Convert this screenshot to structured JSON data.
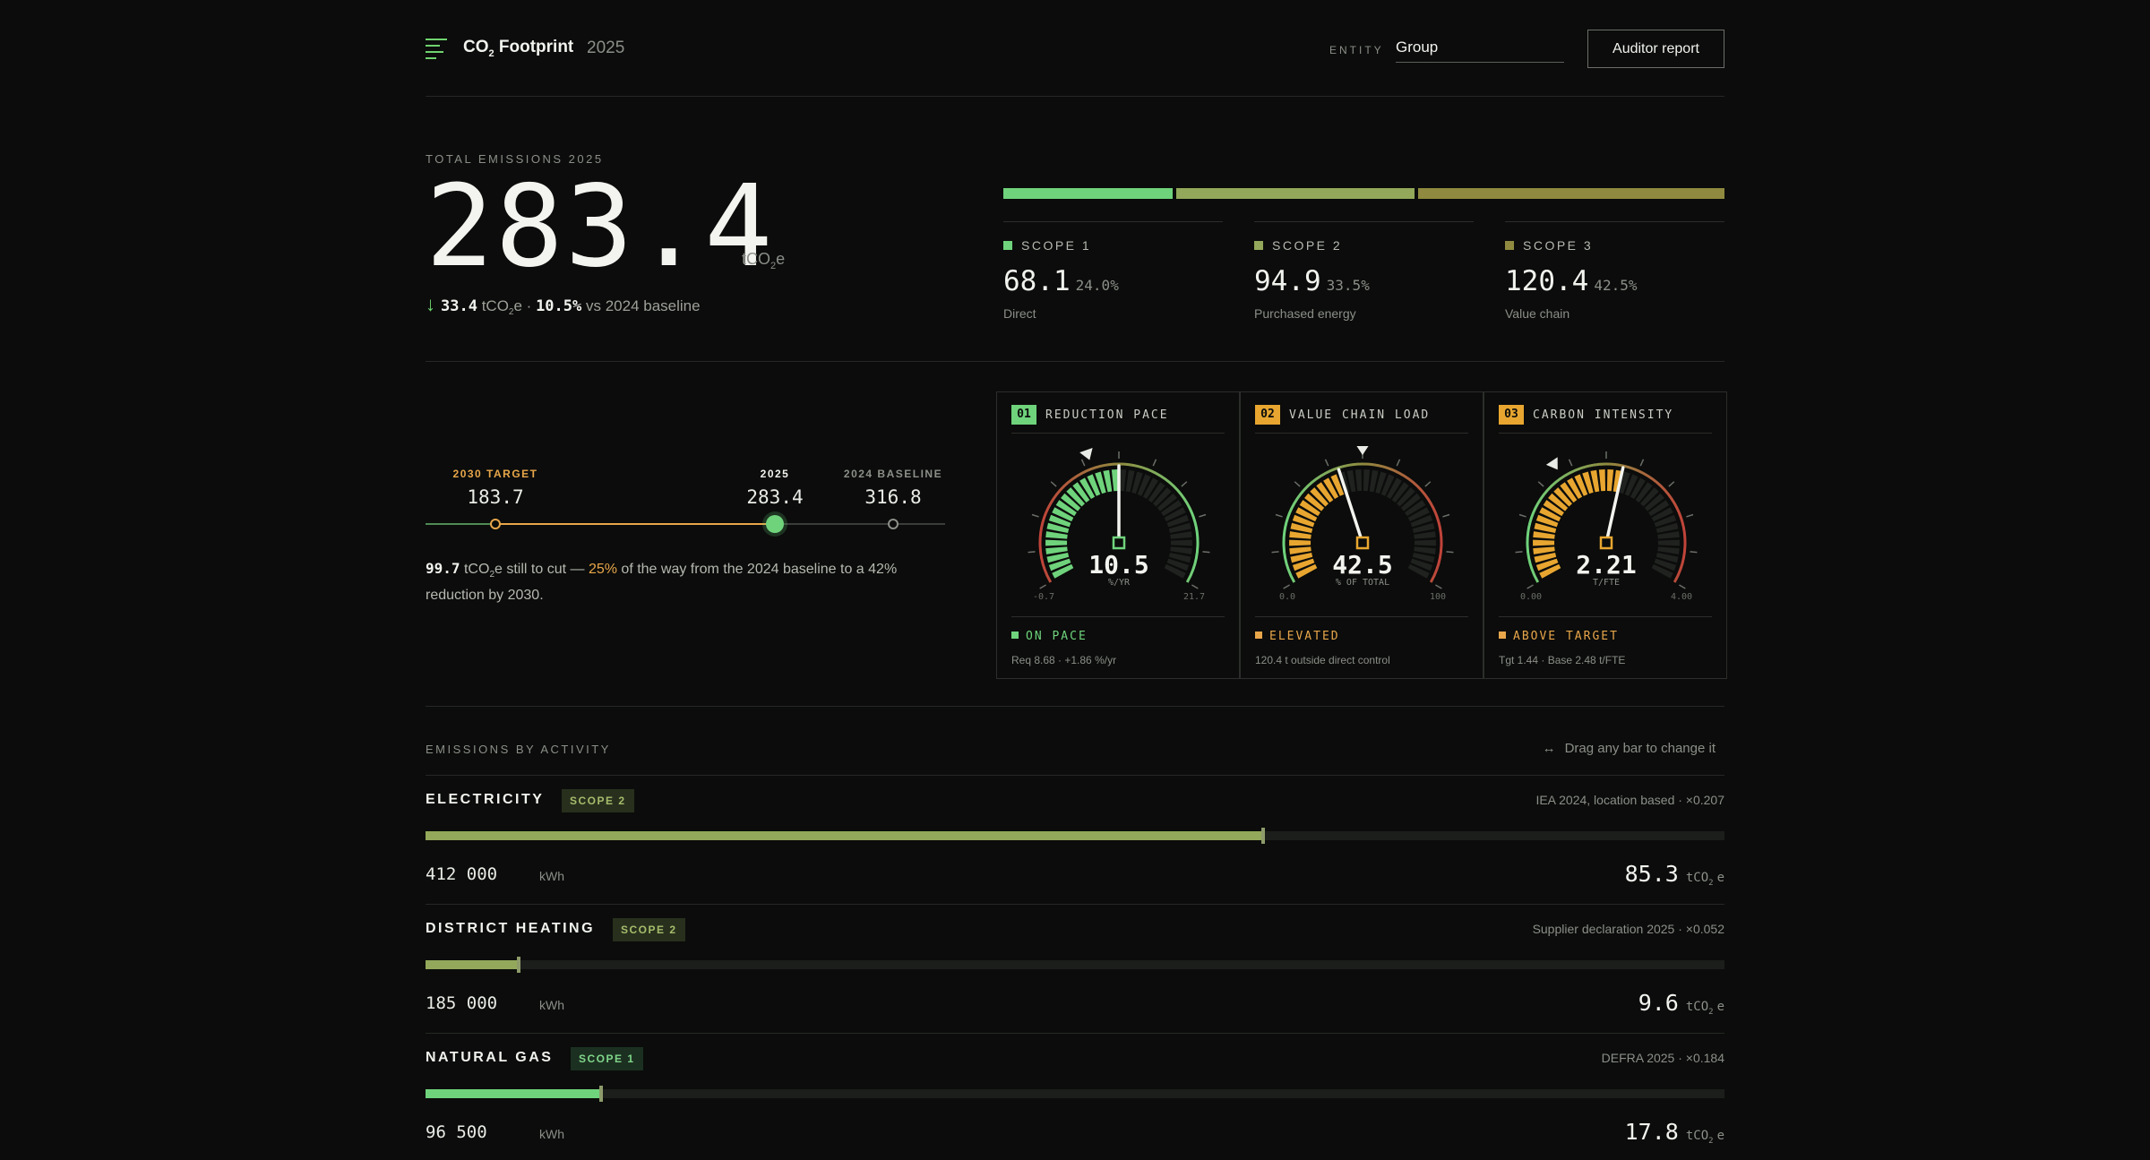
{
  "header": {
    "title_prefix": "CO",
    "title_sub": "2",
    "title_suffix": " Footprint",
    "year": "2025",
    "entity_label": "ENTITY",
    "entity_value": "Group",
    "auditor_button": "Auditor report"
  },
  "total": {
    "label": "TOTAL EMISSIONS 2025",
    "value": "283.4",
    "unit_prefix": "tCO",
    "unit_sub": "2",
    "unit_suffix": "e",
    "delta_arrow": "↓",
    "delta_value": "33.4",
    "delta_unit_prefix": "tCO",
    "delta_unit_sub": "2",
    "delta_unit_suffix": "e ·",
    "delta_pct": "10.5%",
    "delta_suffix": "vs 2024 baseline"
  },
  "scopes": [
    {
      "name": "SCOPE 1",
      "value": "68.1",
      "pct": "24.0%",
      "desc": "Direct",
      "share": 0.24,
      "color": "#6fd37c"
    },
    {
      "name": "SCOPE 2",
      "value": "94.9",
      "pct": "33.5%",
      "desc": "Purchased energy",
      "share": 0.335,
      "color": "#93a85a"
    },
    {
      "name": "SCOPE 3",
      "value": "120.4",
      "pct": "42.5%",
      "desc": "Value chain",
      "share": 0.425,
      "color": "#8f8a3f"
    }
  ],
  "trajectory": {
    "target_label": "2030 TARGET",
    "target_value": "183.7",
    "current_label": "2025",
    "current_value": "283.4",
    "baseline_label": "2024 BASELINE",
    "baseline_value": "316.8",
    "text_amount": "99.7",
    "text_unit_prefix": "tCO",
    "text_unit_sub": "2",
    "text_part1": "e still to cut —",
    "text_pct": "25%",
    "text_part2": "of the way from the 2024 baseline to a 42% reduction by 2030."
  },
  "gauges": [
    {
      "num": "01",
      "title": "REDUCTION PACE",
      "value": "10.5",
      "unit": "%/YR",
      "min_label": "-0.7",
      "max_label": "21.7",
      "min": -0.7,
      "max": 21.7,
      "current": 10.5,
      "marker": 8.68,
      "status": "ON PACE",
      "note": "Req 8.68 · +1.86 %/yr",
      "color": "#6fd37c",
      "status_color": "#6fd37c",
      "badge_color": "#6fd37c"
    },
    {
      "num": "02",
      "title": "VALUE CHAIN LOAD",
      "value": "42.5",
      "unit": "% OF TOTAL",
      "min_label": "0.0",
      "max_label": "100",
      "min": 0,
      "max": 100,
      "current": 42.5,
      "marker": 50,
      "status": "ELEVATED",
      "note": "120.4 t outside direct control",
      "color": "#e8a630",
      "status_color": "#e8a64a",
      "badge_color": "#e8a630"
    },
    {
      "num": "03",
      "title": "CARBON INTENSITY",
      "value": "2.21",
      "unit": "T/FTE",
      "min_label": "0.00",
      "max_label": "4.00",
      "min": 0,
      "max": 4,
      "current": 2.21,
      "marker": 1.44,
      "status": "ABOVE TARGET",
      "note": "Tgt 1.44 · Base 2.48 t/FTE",
      "color": "#e8a630",
      "status_color": "#e8a64a",
      "badge_color": "#e8a630"
    }
  ],
  "activity": {
    "title": "EMISSIONS BY ACTIVITY",
    "hint_icon": "↔",
    "hint": "Drag any bar to change it",
    "items": [
      {
        "name": "ELECTRICITY",
        "scope": "SCOPE 2",
        "source": "IEA 2024, location based · ×0.207",
        "quantity": "412 000",
        "unit": "kWh",
        "emissions": "85.3",
        "fill": 0.645,
        "color": "#93a85a",
        "badge_bg": "#28301d",
        "badge_fg": "#a6bc6c"
      },
      {
        "name": "DISTRICT HEATING",
        "scope": "SCOPE 2",
        "source": "Supplier declaration 2025 · ×0.052",
        "quantity": "185 000",
        "unit": "kWh",
        "emissions": "9.6",
        "fill": 0.072,
        "color": "#93a85a",
        "badge_bg": "#28301d",
        "badge_fg": "#a6bc6c"
      },
      {
        "name": "NATURAL GAS",
        "scope": "SCOPE 1",
        "source": "DEFRA 2025 · ×0.184",
        "quantity": "96 500",
        "unit": "kWh",
        "emissions": "17.8",
        "fill": 0.135,
        "color": "#6fd37c",
        "badge_bg": "#1c3021",
        "badge_fg": "#7fd68a"
      }
    ],
    "emissions_unit_prefix": "tCO",
    "emissions_unit_sub": "2",
    "emissions_unit_suffix": "e"
  }
}
